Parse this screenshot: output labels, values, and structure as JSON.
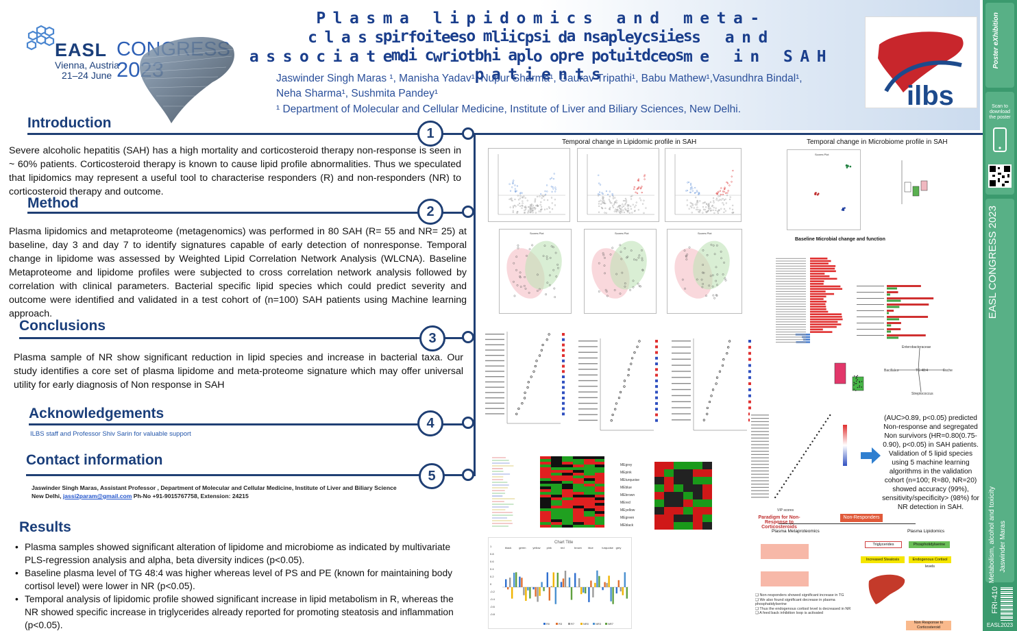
{
  "header": {
    "logo": {
      "easl": "EASL",
      "congress": "CONGRESS",
      "city": "Vienna, Austria",
      "dates": "21–24 June",
      "year": "2023"
    },
    "title_lines": [
      "Plasma lipidomics and meta-proteomics analysis",
      "classifies lipid species and microbial peptides",
      "associated with poor outcome in SAH patients"
    ],
    "authors_line1": "Jaswinder Singh Maras ¹, Manisha Yadav¹, Nupur Sharma¹, Gaurav Tripathi¹, Babu Mathew¹,Vasundhra Bindal¹,",
    "authors_line2": "Neha Sharma¹, Sushmita Pandey¹",
    "affiliation": "¹ Department of Molecular and Cellular Medicine, Institute of Liver and Biliary Sciences, New Delhi.",
    "ilbs_logo": "ilbs"
  },
  "sections": {
    "introduction": {
      "title": "Introduction",
      "number": "1",
      "text": "Severe alcoholic hepatitis (SAH) has a high mortality and corticosteroid therapy non-response is seen in ~ 60% patients. Corticosteroid therapy is known to cause lipid profile abnormalities. Thus we speculated that lipidomics may represent a useful tool to characterise responders (R) and non-responders (NR) to corticosteroid therapy and outcome."
    },
    "method": {
      "title": "Method",
      "number": "2",
      "text": "Plasma lipidomics and metaproteome (metagenomics) was performed in 80 SAH (R= 55 and NR= 25) at baseline, day 3 and day 7 to identify signatures capable of early detection of nonresponse. Temporal change in lipidome was assessed by Weighted Lipid Correlation Network Analysis (WLCNA). Baseline Metaproteome and lipidome profiles were subjected to cross correlation network analysis followed by correlation with clinical parameters. Bacterial specific lipid species which could predict severity and outcome were identified and validated in a test cohort of (n=100) SAH patients using Machine learning approach."
    },
    "conclusions": {
      "title": "Conclusions",
      "number": "3",
      "text": "Plasma sample of NR show significant reduction in lipid species and increase in bacterial taxa. Our study identifies a core set of plasma lipidome and meta-proteome signature which may offer universal utility for early diagnosis of Non response in SAH"
    },
    "acknowledgements": {
      "title": "Acknowledgements",
      "number": "4",
      "text": "ILBS staff and Professor Shiv Sarin for valuable support"
    },
    "contact": {
      "title": "Contact information",
      "number": "5",
      "line1": "Jaswinder Singh Maras, Assistant Professor , Department of Molecular and Cellular Medicine, Institute of Liver and Biliary Science",
      "line2_prefix": "New Delhi, ",
      "email": "jassi2param@gmail.com",
      "line2_suffix": " Ph-No +91-9015767758, Extension: 24215"
    },
    "results": {
      "title": "Results",
      "bullets": [
        "Plasma samples showed significant alteration of lipidome and microbiome as indicated by multivariate PLS-regression analysis and alpha, beta diversity indices (p<0.05).",
        "Baseline plasma level of TG 48:4 was higher whereas level of PS and PE (known for maintaining body cortisol level) were lower in NR (p<0.05).",
        "Temporal analysis of lipidomic profile showed significant increase in lipid metabolism in R, whereas the NR showed specific increase in triglycerides already reported for promoting steatosis and inflammation (p<0.05)."
      ]
    }
  },
  "figures": {
    "lipid_caption": "Temporal change in Lipidomic profile in SAH",
    "microbiome_caption": "Temporal change in Microbiome  profile in SAH",
    "microbial_change_caption": "Baseline Microbial change and function",
    "paradigm_title": "Paradigm for Non-Response to Corticosteroids",
    "non_responders": "Non-Responders",
    "plasma_meta": "Plasma Metaproteomics",
    "plasma_lipid": "Plasma Lipidomics",
    "triglycerides": "Triglycerides",
    "phospholipids": "Phosphotidylserine",
    "increased_steatosis": "Increased Steatosis",
    "endog_cortisol": "Endogenous Cortisol levels",
    "non_response_label": "Non Response to Corticosteroid",
    "chart_title": "Chart Title",
    "callout": "(AUC>0.89, p<0.05) predicted Non-response and segregated Non survivors (HR=0.80(0.75-0.90), p<0.05) in SAH patients. Validation of 5 lipid species using 5 machine learning algorithms in the validation cohort (n=100; R=80, NR=20) showed accuracy (99%), sensitivity/specificity> (98%) for NR detection in SAH.",
    "xaxis_mda": "MeanDecreaseAccuracy",
    "vip_label": "VIP scores",
    "ml_x_ticks": [
      "1.8",
      "2.0",
      "2.2",
      "2.4",
      "2.6",
      "2.8"
    ],
    "bar_groups": [
      "black",
      "green",
      "yellow",
      "pink",
      "red",
      "brown",
      "blue",
      "turquoise",
      "grey"
    ],
    "bar_legend": [
      "R0",
      "R3",
      "R7",
      "NR0",
      "NR3",
      "NR7"
    ],
    "bar_yticks": [
      "1",
      "0.8",
      "0.6",
      "0.4",
      "0.2",
      "0",
      "-0.2",
      "-0.4",
      "-0.6",
      "-0.8"
    ],
    "module_labels": [
      "MEgrey",
      "MEpink",
      "MEturquoise",
      "MEblue",
      "MEbrown",
      "MEred",
      "MEyellow",
      "MEgreen",
      "MEblack"
    ]
  },
  "strip": {
    "scan": "Scan to download the poster",
    "congress": "EASL CONGRESS 2023",
    "topic": "Metabolism, alcohol and toxicity",
    "author": "Jaswinder Maras",
    "code": "FRI-410",
    "footer": "EASL2023"
  }
}
